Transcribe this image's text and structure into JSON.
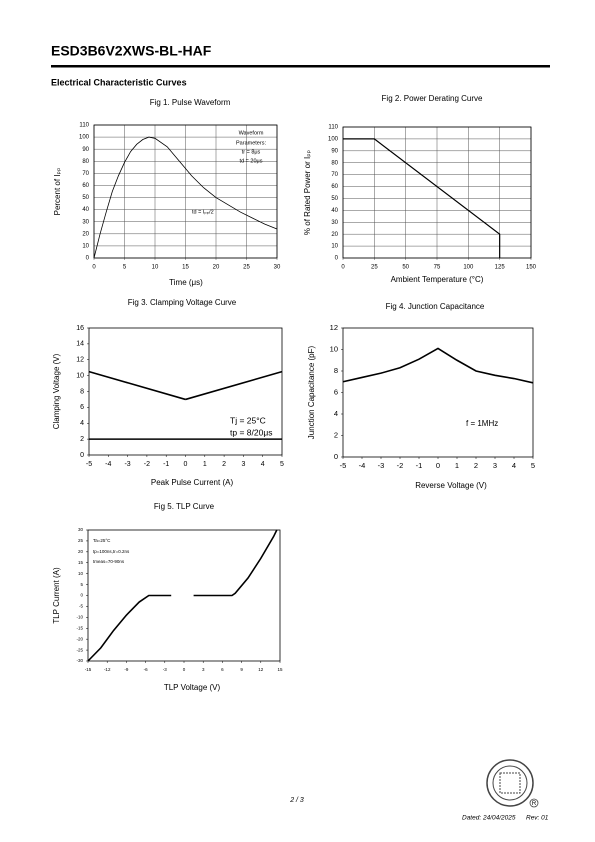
{
  "header": {
    "title": "ESD3B6V2XWS-BL-HAF",
    "section": "Electrical Characteristic Curves"
  },
  "chart_data": [
    {
      "type": "line",
      "title": "Fig 1. Pulse Waveform",
      "xlabel": "Time (μs)",
      "ylabel": "Percent of Iₚₚ",
      "xlim": [
        0,
        30
      ],
      "ylim": [
        0,
        110
      ],
      "xticks": [
        0,
        5,
        10,
        15,
        20,
        25,
        30
      ],
      "yticks": [
        0,
        10,
        20,
        30,
        40,
        50,
        60,
        70,
        80,
        90,
        100,
        110
      ],
      "grid": true,
      "series": [
        {
          "color": "#000000",
          "x": [
            0,
            1,
            2,
            3,
            4,
            5,
            6,
            7,
            8,
            9,
            10,
            12,
            14,
            16,
            18,
            20,
            22,
            24,
            26,
            28,
            30
          ],
          "values": [
            0,
            20,
            38,
            55,
            68,
            79,
            88,
            94,
            98,
            100,
            99,
            92,
            80,
            68,
            58,
            50,
            44,
            38,
            33,
            28,
            24
          ]
        }
      ],
      "annotations": [
        "Waveform",
        "Parameters:",
        "tr = 8μs",
        "td = 20μs",
        "td = Iₚₚ/2"
      ]
    },
    {
      "type": "line",
      "title": "Fig 2. Power Derating Curve",
      "xlabel": "Ambient Temperature (°C)",
      "ylabel": "% of Rated Power or Iₚₚ",
      "xlim": [
        0,
        150
      ],
      "ylim": [
        0,
        110
      ],
      "xticks": [
        0,
        25,
        50,
        75,
        100,
        125,
        150
      ],
      "yticks": [
        0,
        10,
        20,
        30,
        40,
        50,
        60,
        70,
        80,
        90,
        100,
        110
      ],
      "grid": true,
      "series": [
        {
          "color": "#000000",
          "x": [
            0,
            25,
            125,
            125
          ],
          "values": [
            100,
            100,
            20,
            0
          ]
        }
      ],
      "annotations": []
    },
    {
      "type": "line",
      "title": "Fig 3. Clamping Voltage Curve",
      "xlabel": "Peak Pulse Current (A)",
      "ylabel": "Clamping Voltage (V)",
      "xlim": [
        -5,
        5
      ],
      "ylim": [
        0,
        16
      ],
      "xticks": [
        -5,
        -4,
        -3,
        -2,
        -1,
        0,
        1,
        2,
        3,
        4,
        5
      ],
      "yticks": [
        0,
        2,
        4,
        6,
        8,
        10,
        12,
        14,
        16
      ],
      "grid": false,
      "series": [
        {
          "color": "#000000",
          "x": [
            -5,
            0
          ],
          "values": [
            10.5,
            7
          ]
        },
        {
          "color": "#000000",
          "x": [
            0,
            5
          ],
          "values": [
            7,
            10.5
          ]
        },
        {
          "color": "#000000",
          "x": [
            -5,
            5
          ],
          "values": [
            2,
            2
          ]
        }
      ],
      "annotations": [
        "Tj = 25°C",
        "tp = 8/20μs"
      ]
    },
    {
      "type": "line",
      "title": "Fig 4. Junction Capacitance",
      "xlabel": "Reverse Voltage (V)",
      "ylabel": "Junction Capacitance (pF)",
      "xlim": [
        -5,
        5
      ],
      "ylim": [
        0,
        12
      ],
      "xticks": [
        -5,
        -4,
        -3,
        -2,
        -1,
        0,
        1,
        2,
        3,
        4,
        5
      ],
      "yticks": [
        0,
        2,
        4,
        6,
        8,
        10,
        12
      ],
      "grid": false,
      "series": [
        {
          "color": "#000000",
          "x": [
            -5,
            -4,
            -3,
            -2,
            -1,
            0,
            1,
            2,
            3,
            4,
            5
          ],
          "values": [
            7,
            7.4,
            7.8,
            8.3,
            9.1,
            10.1,
            9,
            8,
            7.6,
            7.3,
            6.9
          ]
        }
      ],
      "annotations": [
        "f = 1MHz"
      ]
    },
    {
      "type": "line",
      "title": "Fig 5. TLP Curve",
      "xlabel": "TLP Voltage (V)",
      "ylabel": "TLP Current (A)",
      "xlim": [
        -15,
        15
      ],
      "ylim": [
        -30,
        30
      ],
      "xticks": [
        -15,
        -12,
        -9,
        -6,
        -3,
        0,
        3,
        6,
        9,
        12,
        15
      ],
      "yticks": [
        -30,
        -25,
        -20,
        -15,
        -10,
        -5,
        0,
        5,
        10,
        15,
        20,
        25,
        30
      ],
      "grid": false,
      "series": [
        {
          "color": "#000000",
          "x": [
            -15,
            -13,
            -11,
            -9,
            -7,
            -5.5,
            -2,
            0,
            1.5,
            7.5,
            8,
            10,
            12,
            14,
            14.5
          ],
          "values": [
            -30,
            -24,
            -16,
            -9,
            -3,
            0,
            0,
            null,
            0,
            0,
            1,
            8,
            17,
            27,
            30
          ]
        }
      ],
      "annotations": [
        "Ta=25°C",
        "tp=100ns,tr=0.2ns",
        "tmeas=70-90ns"
      ]
    }
  ],
  "footer": {
    "page": "2 / 3",
    "dated": "Dated: 24/04/2025",
    "rev": "Rev: 01"
  }
}
